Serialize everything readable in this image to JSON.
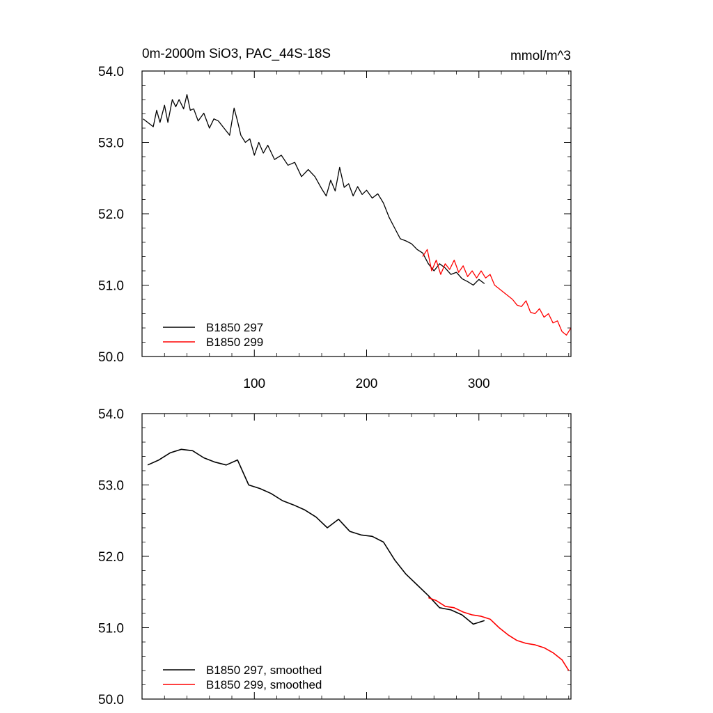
{
  "chart_data": [
    {
      "type": "line",
      "title": "0m-2000m SiO3, PAC_44S-18S",
      "units": "mmol/m^3",
      "xlim": [
        0,
        382
      ],
      "ylim": [
        50.0,
        54.0
      ],
      "yticks": [
        "50.0",
        "51.0",
        "52.0",
        "53.0",
        "54.0"
      ],
      "xticks": [
        "100",
        "200",
        "300"
      ],
      "legend": "bottom-left",
      "series": [
        {
          "name": "B1850 297",
          "color": "#000000",
          "x": [
            1,
            5,
            10,
            13,
            16,
            20,
            23,
            27,
            30,
            33,
            37,
            40,
            43,
            46,
            50,
            55,
            60,
            64,
            68,
            73,
            78,
            82,
            85,
            88,
            92,
            96,
            100,
            104,
            108,
            112,
            118,
            124,
            130,
            136,
            142,
            148,
            154,
            160,
            164,
            168,
            172,
            176,
            180,
            184,
            188,
            192,
            196,
            200,
            205,
            210,
            215,
            220,
            225,
            230,
            235,
            240,
            245,
            250,
            255,
            260,
            265,
            270,
            275,
            280,
            285,
            290,
            295,
            300,
            305
          ],
          "values": [
            53.33,
            53.28,
            53.22,
            53.45,
            53.28,
            53.52,
            53.28,
            53.6,
            53.5,
            53.6,
            53.47,
            53.67,
            53.45,
            53.47,
            53.3,
            53.41,
            53.2,
            53.33,
            53.3,
            53.2,
            53.1,
            53.48,
            53.3,
            53.1,
            53.0,
            53.05,
            52.82,
            53.0,
            52.85,
            52.96,
            52.76,
            52.82,
            52.68,
            52.72,
            52.52,
            52.62,
            52.52,
            52.35,
            52.25,
            52.47,
            52.32,
            52.65,
            52.37,
            52.42,
            52.25,
            52.38,
            52.27,
            52.33,
            52.22,
            52.28,
            52.15,
            51.95,
            51.8,
            51.65,
            51.62,
            51.58,
            51.5,
            51.45,
            51.3,
            51.2,
            51.3,
            51.24,
            51.15,
            51.18,
            51.09,
            51.05,
            51.0,
            51.08,
            51.02
          ]
        },
        {
          "name": "B1850 299",
          "color": "#ff0000",
          "x": [
            250,
            254,
            258,
            262,
            266,
            270,
            274,
            278,
            282,
            286,
            290,
            294,
            298,
            302,
            306,
            310,
            314,
            318,
            322,
            326,
            330,
            334,
            338,
            342,
            346,
            350,
            354,
            358,
            362,
            366,
            370,
            374,
            378,
            382
          ],
          "values": [
            51.4,
            51.5,
            51.2,
            51.35,
            51.15,
            51.3,
            51.22,
            51.35,
            51.18,
            51.27,
            51.12,
            51.2,
            51.1,
            51.2,
            51.1,
            51.15,
            51.0,
            50.95,
            50.9,
            50.85,
            50.8,
            50.72,
            50.7,
            50.78,
            50.62,
            50.6,
            50.67,
            50.55,
            50.6,
            50.47,
            50.5,
            50.35,
            50.3,
            50.4
          ]
        }
      ]
    },
    {
      "type": "line",
      "xlim": [
        0,
        382
      ],
      "ylim": [
        50.0,
        54.0
      ],
      "yticks": [
        "50.0",
        "51.0",
        "52.0",
        "53.0",
        "54.0"
      ],
      "legend": "bottom-left",
      "series": [
        {
          "name": "B1850 297, smoothed",
          "color": "#000000",
          "x": [
            5,
            15,
            25,
            35,
            45,
            55,
            65,
            75,
            85,
            95,
            105,
            115,
            125,
            135,
            145,
            155,
            165,
            175,
            185,
            195,
            205,
            215,
            225,
            235,
            245,
            255,
            265,
            275,
            285,
            295,
            305
          ],
          "values": [
            53.28,
            53.35,
            53.45,
            53.5,
            53.48,
            53.38,
            53.32,
            53.28,
            53.35,
            53.0,
            52.95,
            52.88,
            52.78,
            52.72,
            52.65,
            52.55,
            52.4,
            52.52,
            52.35,
            52.3,
            52.28,
            52.2,
            51.95,
            51.75,
            51.6,
            51.45,
            51.28,
            51.25,
            51.18,
            51.05,
            51.1
          ]
        },
        {
          "name": "B1850 299, smoothed",
          "color": "#ff0000",
          "x": [
            255,
            262,
            270,
            278,
            286,
            294,
            302,
            310,
            318,
            326,
            334,
            342,
            350,
            358,
            366,
            374,
            380
          ],
          "values": [
            51.42,
            51.38,
            51.3,
            51.28,
            51.22,
            51.18,
            51.16,
            51.12,
            51.0,
            50.9,
            50.82,
            50.78,
            50.76,
            50.72,
            50.65,
            50.55,
            50.4
          ]
        }
      ]
    }
  ]
}
